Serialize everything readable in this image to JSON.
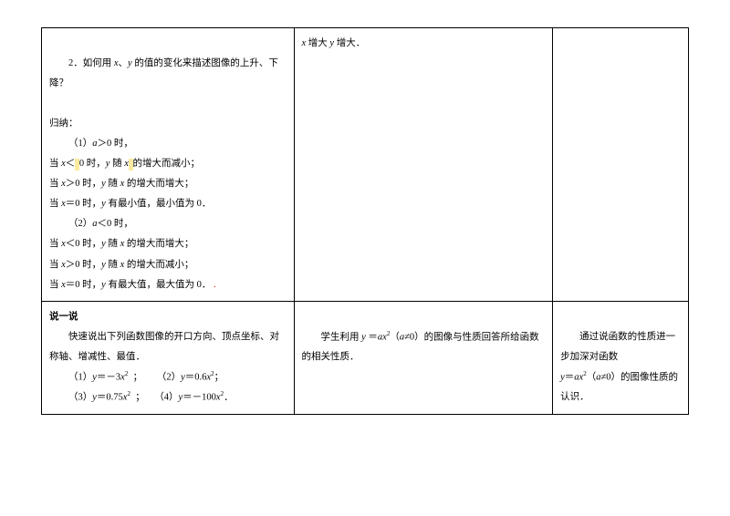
{
  "row1": {
    "col1": {
      "q2": "2．如何用 x、y 的值的变化来描述图像的上升、下降？",
      "gna": "归纳：",
      "a1": "（1）a＞0 时，",
      "l1a": "当 x＜",
      "l1b": "0 时，y 随 x",
      "l1c": "的增大而减小；",
      "l2": "当 x＞0 时，y 随 x 的增大而增大；",
      "l3": "当 x＝0 时，y 有最小值，最小值为 0．",
      "a2": "（2）a＜0 时，",
      "l4": "当 x＜0 时，y 随 x 的增大而增大；",
      "l5": "当 x＞0 时，y 随 x 的增大而减小；",
      "l6a": "当 x＝0 时，y 有最大值，最大值为 0．",
      "l6b": "."
    },
    "col2": "x 增大 y 增大．",
    "col3": ""
  },
  "row2": {
    "col1": {
      "h": "说一说",
      "p": "快速说出下列函数图像的开口方向、顶点坐标、对称轴、增减性、最值．",
      "e1a": "（1）y＝－3x",
      "e1b": "  ；",
      "e2a": "（2）y＝0.6x",
      "e2b": "；",
      "e3a": "（3）y＝0.75x",
      "e3b": "  ；",
      "e4a": "（4）y＝－100x",
      "e4b": "．"
    },
    "col2": {
      "pa": "学生利用 y",
      "pb": "＝ax",
      "pc": "（a≠0）的图像与性质回答所给函数的相关性质．"
    },
    "col3": {
      "pa": "通过说函数的性质进一步加深对函数",
      "pb": "y＝ax",
      "pc": "（a≠0）的图像性质的认识．"
    }
  }
}
